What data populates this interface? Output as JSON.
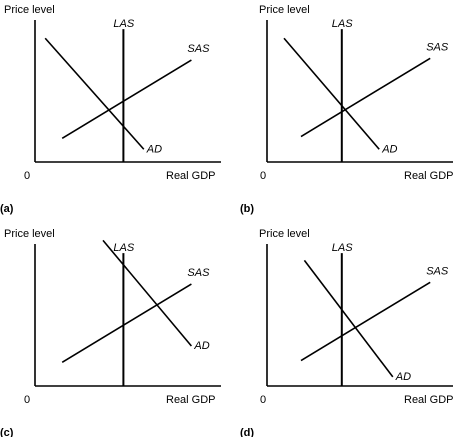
{
  "chart_data": [
    {
      "type": "line",
      "panel_label": "(a)",
      "ylabel": "Price level",
      "xlabel": "Real GDP",
      "origin_label": "0",
      "series": [
        {
          "name": "LAS",
          "x": [
            5.2,
            5.2
          ],
          "y": [
            0,
            7.3
          ]
        },
        {
          "name": "SAS",
          "x": [
            1.6,
            9.2
          ],
          "y": [
            1.3,
            5.6
          ]
        },
        {
          "name": "AD",
          "x": [
            0.6,
            6.4
          ],
          "y": [
            6.8,
            0.7
          ]
        }
      ]
    },
    {
      "type": "line",
      "panel_label": "(b)",
      "ylabel": "Price level",
      "xlabel": "Real GDP",
      "origin_label": "0",
      "series": [
        {
          "name": "LAS",
          "x": [
            4.4,
            4.4
          ],
          "y": [
            0,
            7.3
          ]
        },
        {
          "name": "SAS",
          "x": [
            2.0,
            9.6
          ],
          "y": [
            1.4,
            5.7
          ]
        },
        {
          "name": "AD",
          "x": [
            1.0,
            6.6
          ],
          "y": [
            6.8,
            0.7
          ]
        }
      ]
    },
    {
      "type": "line",
      "panel_label": "(c)",
      "ylabel": "Price level",
      "xlabel": "Real GDP",
      "origin_label": "0",
      "series": [
        {
          "name": "LAS",
          "x": [
            5.2,
            5.2
          ],
          "y": [
            0,
            7.3
          ]
        },
        {
          "name": "SAS",
          "x": [
            1.6,
            9.2
          ],
          "y": [
            1.3,
            5.6
          ]
        },
        {
          "name": "AD",
          "x": [
            4.0,
            9.2
          ],
          "y": [
            8.0,
            2.2
          ]
        }
      ]
    },
    {
      "type": "line",
      "panel_label": "(d)",
      "ylabel": "Price level",
      "xlabel": "Real GDP",
      "origin_label": "0",
      "series": [
        {
          "name": "LAS",
          "x": [
            4.4,
            4.4
          ],
          "y": [
            0,
            7.3
          ]
        },
        {
          "name": "SAS",
          "x": [
            2.0,
            9.6
          ],
          "y": [
            1.4,
            5.7
          ]
        },
        {
          "name": "AD",
          "x": [
            2.2,
            7.4
          ],
          "y": [
            6.9,
            0.5
          ]
        }
      ]
    }
  ]
}
